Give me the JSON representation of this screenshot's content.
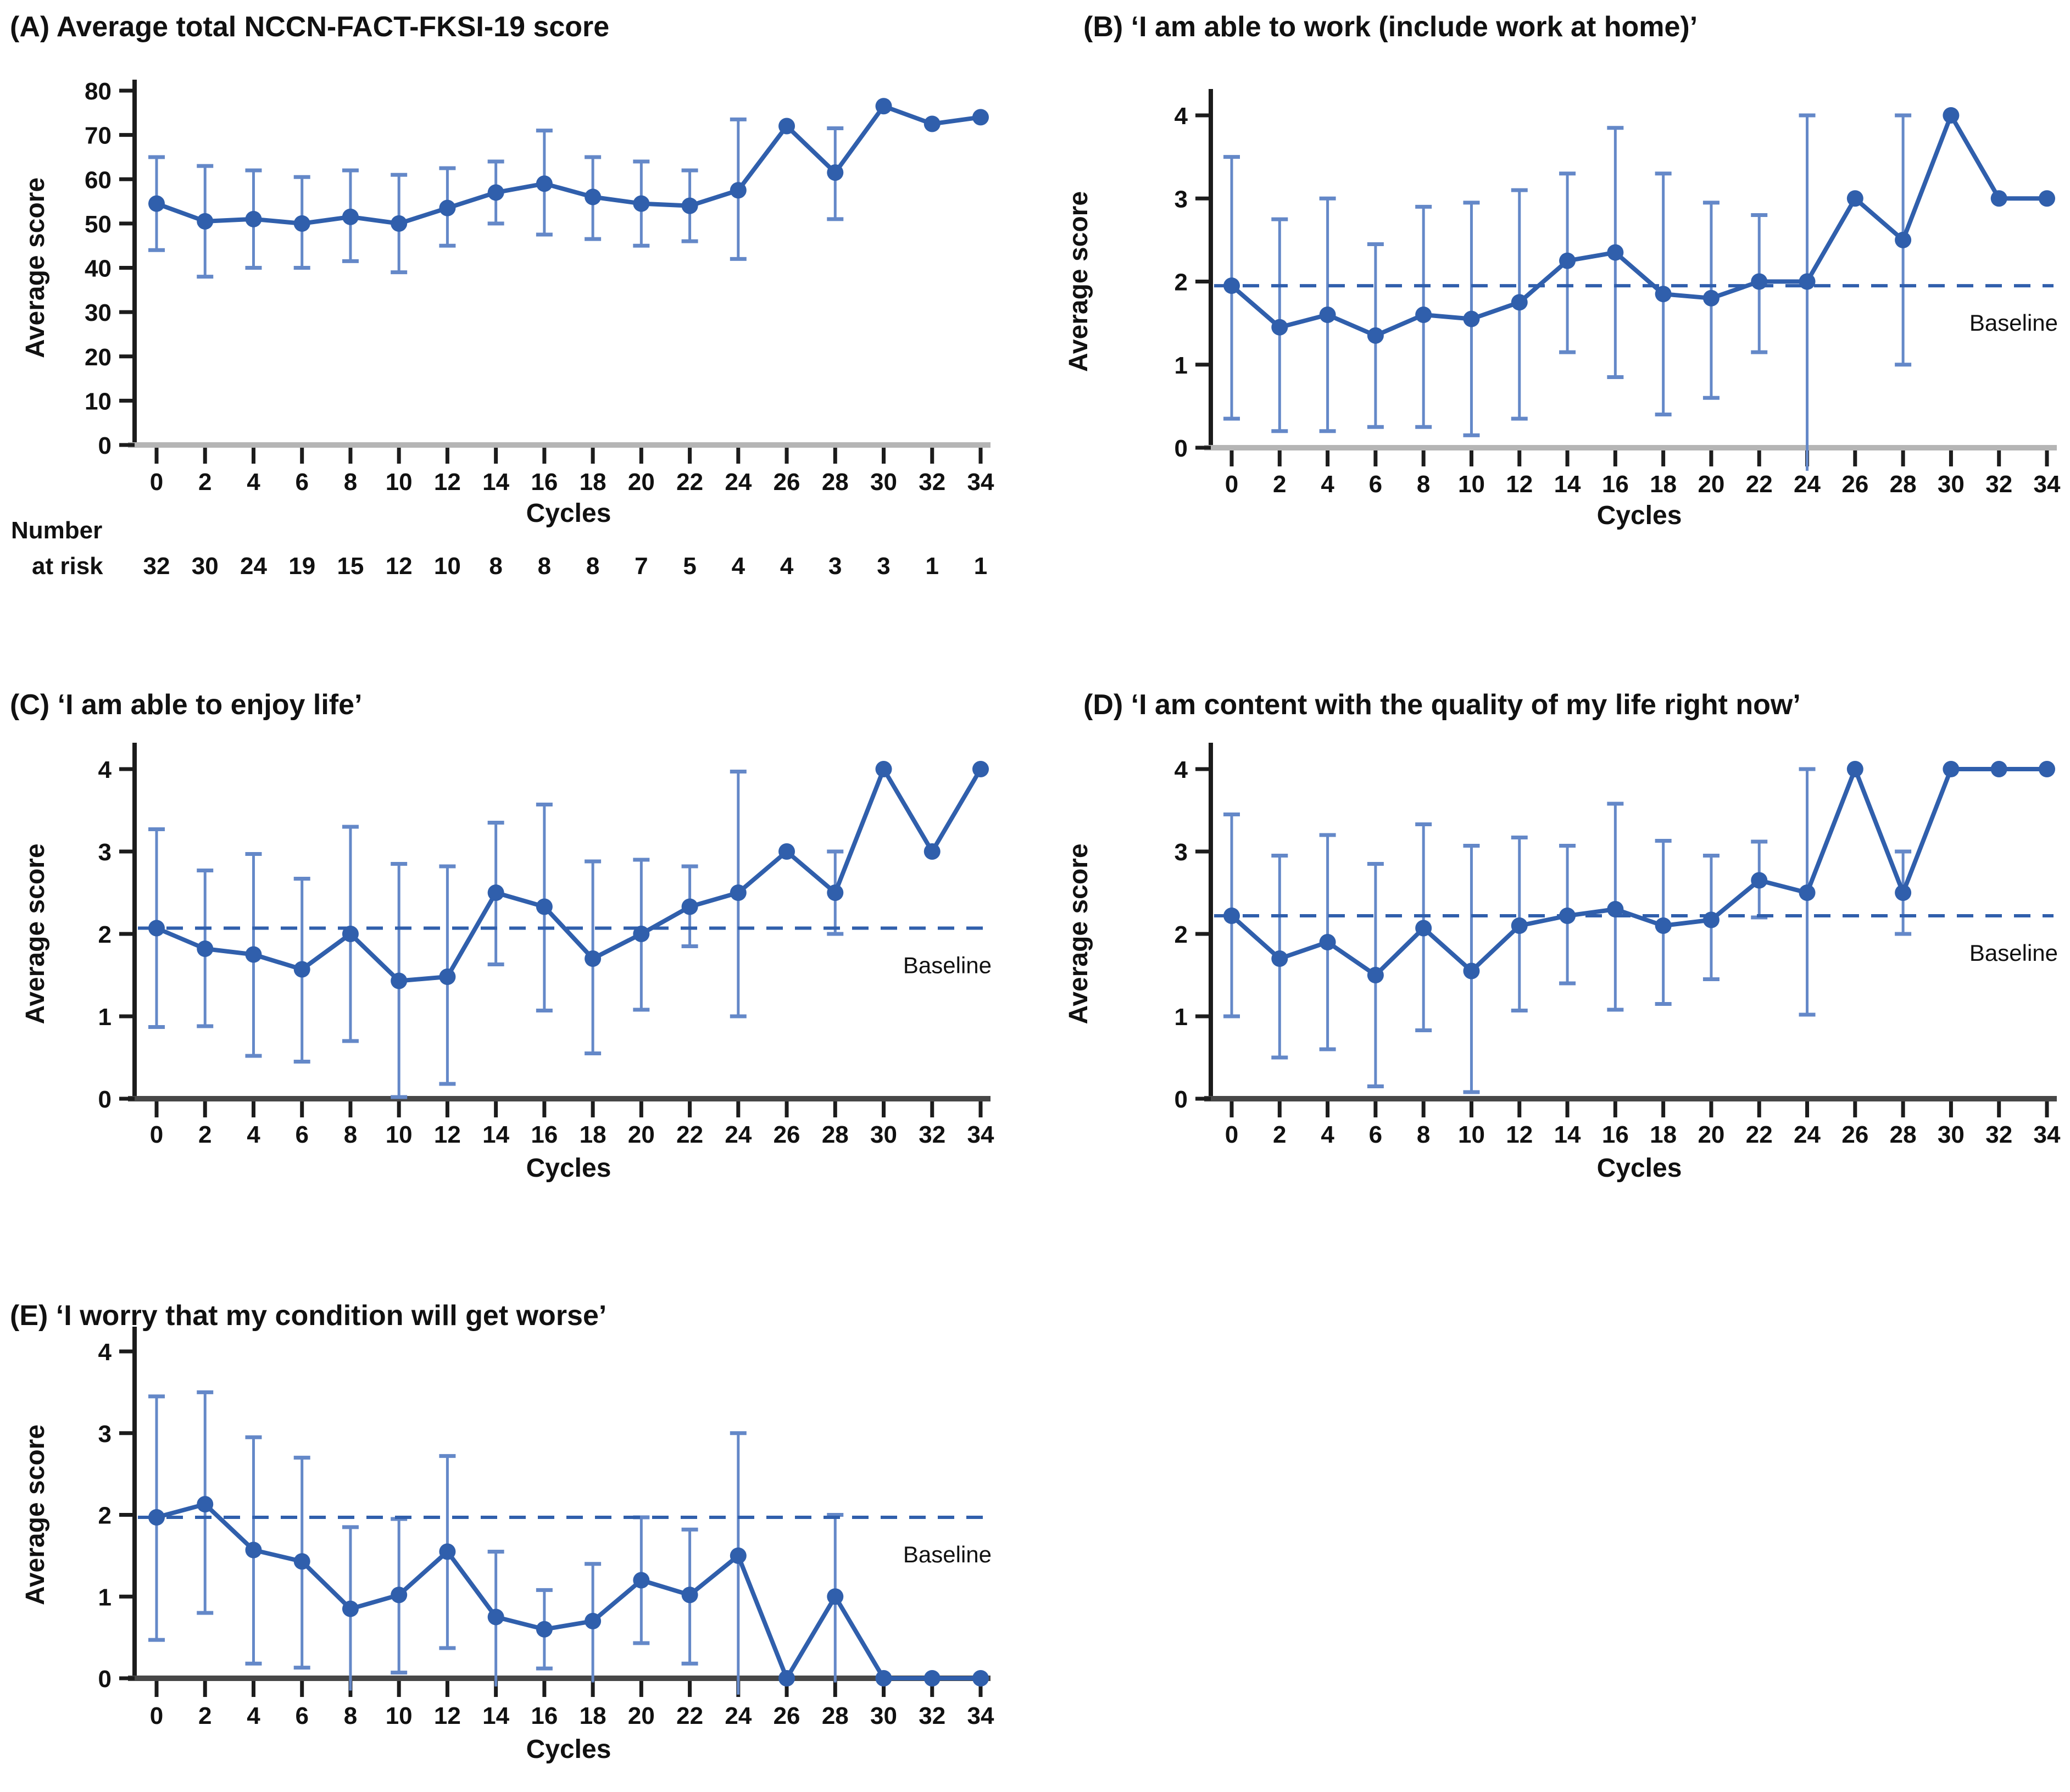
{
  "figure_background": "#ffffff",
  "colors": {
    "line": "#305fac",
    "marker": "#305fac",
    "error_bar": "#6488c8",
    "baseline_dash": "#305fac",
    "y_axis": "#1c1c1c",
    "x_axis_light": "#b5b5b5",
    "x_axis_dark": "#474747",
    "tick": "#1c1c1c",
    "text": "#111111"
  },
  "labels": {
    "y_axis": "Average score",
    "x_axis": "Cycles",
    "baseline": "Baseline",
    "number_at_risk_line1": "Number",
    "number_at_risk_line2": "at risk"
  },
  "chart_data": [
    {
      "id": "A",
      "type": "line",
      "title": "(A) Average total NCCN-FACT-FKSI-19 score",
      "ylabel": "Average score",
      "xlabel": "Cycles",
      "ylim": [
        0,
        80
      ],
      "yticks": [
        0,
        10,
        20,
        30,
        40,
        50,
        60,
        70,
        80
      ],
      "x": [
        0,
        2,
        4,
        6,
        8,
        10,
        12,
        14,
        16,
        18,
        20,
        22,
        24,
        26,
        28,
        30,
        32,
        34
      ],
      "values": [
        54.5,
        50.5,
        51,
        50,
        51.5,
        50,
        53.5,
        57,
        59,
        56,
        54.5,
        54,
        57.5,
        72,
        61.5,
        76.5,
        72.5,
        74
      ],
      "err_lo": [
        44,
        38,
        40,
        40,
        41.5,
        39,
        45,
        50,
        47.5,
        46.5,
        45,
        46,
        42,
        null,
        51,
        null,
        null,
        null
      ],
      "err_hi": [
        65,
        63,
        62,
        60.5,
        62,
        61,
        62.5,
        64,
        71,
        65,
        64,
        62,
        73.5,
        null,
        71.5,
        null,
        null,
        null
      ],
      "baseline": null,
      "number_at_risk": [
        32,
        30,
        24,
        19,
        15,
        12,
        10,
        8,
        8,
        8,
        7,
        5,
        4,
        4,
        3,
        3,
        1,
        1
      ]
    },
    {
      "id": "B",
      "type": "line",
      "title": "(B) ‘I am able to work (include work at home)’",
      "ylabel": "Average score",
      "xlabel": "Cycles",
      "ylim": [
        0,
        4
      ],
      "yticks": [
        0,
        1,
        2,
        3,
        4
      ],
      "x": [
        0,
        2,
        4,
        6,
        8,
        10,
        12,
        14,
        16,
        18,
        20,
        22,
        24,
        26,
        28,
        30,
        32,
        34
      ],
      "values": [
        1.95,
        1.45,
        1.6,
        1.35,
        1.6,
        1.55,
        1.75,
        2.25,
        2.35,
        1.85,
        1.8,
        2.0,
        2.0,
        3.0,
        2.5,
        4.0,
        3.0,
        3.0
      ],
      "err_lo": [
        0.35,
        0.2,
        0.2,
        0.25,
        0.25,
        0.15,
        0.35,
        1.15,
        0.85,
        0.4,
        0.6,
        1.15,
        -0.3,
        null,
        1.0,
        null,
        null,
        null
      ],
      "err_hi": [
        3.5,
        2.75,
        3.0,
        2.45,
        2.9,
        2.95,
        3.1,
        3.3,
        3.85,
        3.3,
        2.95,
        2.8,
        4.0,
        null,
        4.0,
        null,
        null,
        null
      ],
      "baseline": 1.95,
      "number_at_risk": null
    },
    {
      "id": "C",
      "type": "line",
      "title": "(C) ‘I am able to enjoy life’",
      "ylabel": "Average score",
      "xlabel": "Cycles",
      "ylim": [
        0,
        4
      ],
      "yticks": [
        0,
        1,
        2,
        3,
        4
      ],
      "x": [
        0,
        2,
        4,
        6,
        8,
        10,
        12,
        14,
        16,
        18,
        20,
        22,
        24,
        26,
        28,
        30,
        32,
        34
      ],
      "values": [
        2.07,
        1.82,
        1.75,
        1.57,
        2.0,
        1.43,
        1.48,
        2.5,
        2.33,
        1.7,
        2.0,
        2.33,
        2.5,
        3.0,
        2.5,
        4.0,
        3.0,
        4.0
      ],
      "err_lo": [
        0.87,
        0.88,
        0.52,
        0.45,
        0.7,
        0.02,
        0.18,
        1.63,
        1.07,
        0.55,
        1.08,
        1.85,
        1.0,
        null,
        2.0,
        null,
        null,
        null
      ],
      "err_hi": [
        3.27,
        2.77,
        2.97,
        2.67,
        3.3,
        2.85,
        2.82,
        3.35,
        3.57,
        2.88,
        2.9,
        2.82,
        3.97,
        null,
        3.0,
        null,
        null,
        null
      ],
      "baseline": 2.07,
      "number_at_risk": null
    },
    {
      "id": "D",
      "type": "line",
      "title": "(D) ‘I am content with the quality of my life right now’",
      "ylabel": "Average score",
      "xlabel": "Cycles",
      "ylim": [
        0,
        4
      ],
      "yticks": [
        0,
        1,
        2,
        3,
        4
      ],
      "x": [
        0,
        2,
        4,
        6,
        8,
        10,
        12,
        14,
        16,
        18,
        20,
        22,
        24,
        26,
        28,
        30,
        32,
        34
      ],
      "values": [
        2.22,
        1.7,
        1.9,
        1.5,
        2.07,
        1.55,
        2.1,
        2.22,
        2.3,
        2.1,
        2.17,
        2.65,
        2.5,
        4.0,
        2.5,
        4.0,
        4.0,
        4.0
      ],
      "err_lo": [
        1.0,
        0.5,
        0.6,
        0.15,
        0.83,
        0.08,
        1.07,
        1.4,
        1.08,
        1.15,
        1.45,
        2.2,
        1.02,
        null,
        2.0,
        null,
        null,
        null
      ],
      "err_hi": [
        3.45,
        2.95,
        3.2,
        2.85,
        3.33,
        3.07,
        3.17,
        3.07,
        3.58,
        3.13,
        2.95,
        3.12,
        4.0,
        null,
        3.0,
        null,
        null,
        null
      ],
      "baseline": 2.22,
      "number_at_risk": null
    },
    {
      "id": "E",
      "type": "line",
      "title": "(E) ‘I worry that my condition will get worse’",
      "ylabel": "Average score",
      "xlabel": "Cycles",
      "ylim": [
        0,
        4
      ],
      "yticks": [
        0,
        1,
        2,
        3,
        4
      ],
      "x": [
        0,
        2,
        4,
        6,
        8,
        10,
        12,
        14,
        16,
        18,
        20,
        22,
        24,
        26,
        28,
        30,
        32,
        34
      ],
      "values": [
        1.97,
        2.13,
        1.57,
        1.43,
        0.85,
        1.02,
        1.55,
        0.75,
        0.6,
        0.7,
        1.2,
        1.02,
        1.5,
        0.0,
        1.0,
        0.0,
        0.0,
        0.0
      ],
      "err_lo": [
        0.47,
        0.8,
        0.18,
        0.13,
        -0.15,
        0.07,
        0.37,
        -0.1,
        0.12,
        -0.05,
        0.43,
        0.18,
        -0.2,
        null,
        -0.05,
        null,
        null,
        null
      ],
      "err_hi": [
        3.45,
        3.5,
        2.95,
        2.7,
        1.85,
        1.95,
        2.72,
        1.55,
        1.08,
        1.4,
        1.97,
        1.82,
        3.0,
        null,
        2.0,
        null,
        null,
        null
      ],
      "baseline": 1.97,
      "number_at_risk": null
    }
  ]
}
